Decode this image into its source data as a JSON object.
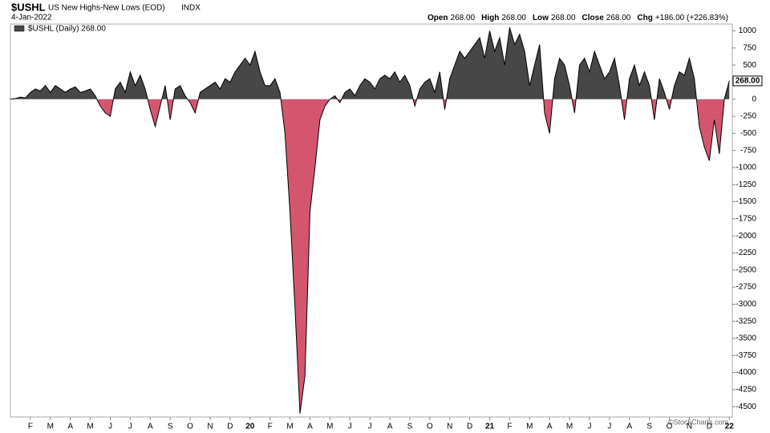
{
  "chart_data": {
    "type": "area",
    "symbol": "$USHL",
    "title": "US New Highs-New Lows (EOD)",
    "exchange": "INDX",
    "date": "4-Jan-2022",
    "quote": [
      {
        "label": "Open",
        "value": "268.00"
      },
      {
        "label": "High",
        "value": "268.00"
      },
      {
        "label": "Low",
        "value": "268.00"
      },
      {
        "label": "Close",
        "value": "268.00"
      },
      {
        "label": "Chg",
        "value": "+186.00 (+226.83%)"
      }
    ],
    "credit": "©StockCharts.com",
    "last_value_label": "268.00",
    "positive_color": "#474747",
    "negative_color": "#d4566e",
    "line_color": "#000000",
    "xlim": [
      0,
      36.15
    ],
    "xticks": [
      {
        "value": 1,
        "label": "F"
      },
      {
        "value": 2,
        "label": "M"
      },
      {
        "value": 3,
        "label": "A"
      },
      {
        "value": 4,
        "label": "M"
      },
      {
        "value": 5,
        "label": "J"
      },
      {
        "value": 6,
        "label": "J"
      },
      {
        "value": 7,
        "label": "A"
      },
      {
        "value": 8,
        "label": "S"
      },
      {
        "value": 9,
        "label": "O"
      },
      {
        "value": 10,
        "label": "N"
      },
      {
        "value": 11,
        "label": "D"
      },
      {
        "value": 12,
        "label": "20"
      },
      {
        "value": 13,
        "label": "F"
      },
      {
        "value": 14,
        "label": "M"
      },
      {
        "value": 15,
        "label": "A"
      },
      {
        "value": 16,
        "label": "M"
      },
      {
        "value": 17,
        "label": "J"
      },
      {
        "value": 18,
        "label": "J"
      },
      {
        "value": 19,
        "label": "A"
      },
      {
        "value": 20,
        "label": "S"
      },
      {
        "value": 21,
        "label": "O"
      },
      {
        "value": 22,
        "label": "N"
      },
      {
        "value": 23,
        "label": "D"
      },
      {
        "value": 24,
        "label": "21"
      },
      {
        "value": 25,
        "label": "F"
      },
      {
        "value": 26,
        "label": "M"
      },
      {
        "value": 27,
        "label": "A"
      },
      {
        "value": 28,
        "label": "M"
      },
      {
        "value": 29,
        "label": "J"
      },
      {
        "value": 30,
        "label": "J"
      },
      {
        "value": 31,
        "label": "A"
      },
      {
        "value": 32,
        "label": "S"
      },
      {
        "value": 33,
        "label": "O"
      },
      {
        "value": 34,
        "label": "N"
      },
      {
        "value": 35,
        "label": "D"
      },
      {
        "value": 36,
        "label": "22"
      }
    ],
    "ylim": [
      -4650,
      1100
    ],
    "yticks": [
      1000,
      750,
      500,
      250,
      0,
      -250,
      -500,
      -750,
      -1000,
      -1250,
      -1500,
      -1750,
      -2000,
      -2250,
      -2500,
      -2750,
      -3000,
      -3250,
      -3500,
      -3750,
      -4000,
      -4250,
      -4500
    ],
    "x": [
      0,
      0.25,
      0.5,
      0.75,
      1,
      1.25,
      1.5,
      1.75,
      2,
      2.25,
      2.5,
      2.75,
      3,
      3.25,
      3.5,
      3.75,
      4,
      4.25,
      4.5,
      4.75,
      5,
      5.25,
      5.5,
      5.75,
      6,
      6.25,
      6.5,
      6.75,
      7,
      7.25,
      7.5,
      7.75,
      8,
      8.25,
      8.5,
      8.75,
      9,
      9.25,
      9.5,
      9.75,
      10,
      10.25,
      10.5,
      10.75,
      11,
      11.25,
      11.5,
      11.75,
      12,
      12.25,
      12.5,
      12.75,
      13,
      13.25,
      13.5,
      13.75,
      14,
      14.25,
      14.5,
      14.75,
      15,
      15.25,
      15.5,
      15.75,
      16,
      16.25,
      16.5,
      16.75,
      17,
      17.25,
      17.5,
      17.75,
      18,
      18.25,
      18.5,
      18.75,
      19,
      19.25,
      19.5,
      19.75,
      20,
      20.25,
      20.5,
      20.75,
      21,
      21.25,
      21.5,
      21.75,
      22,
      22.25,
      22.5,
      22.75,
      23,
      23.25,
      23.5,
      23.75,
      24,
      24.25,
      24.5,
      24.75,
      25,
      25.25,
      25.5,
      25.75,
      26,
      26.25,
      26.5,
      26.75,
      27,
      27.25,
      27.5,
      27.75,
      28,
      28.25,
      28.5,
      28.75,
      29,
      29.25,
      29.5,
      29.75,
      30,
      30.25,
      30.5,
      30.75,
      31,
      31.25,
      31.5,
      31.75,
      32,
      32.25,
      32.5,
      32.75,
      33,
      33.25,
      33.5,
      33.75,
      34,
      34.25,
      34.5,
      34.75,
      35,
      35.25,
      35.5,
      35.75,
      36
    ],
    "series": [
      {
        "name": "$USHL (Daily) 268.00",
        "values": [
          0,
          10,
          30,
          20,
          100,
          150,
          120,
          200,
          100,
          200,
          150,
          100,
          150,
          180,
          100,
          120,
          150,
          50,
          -100,
          -200,
          -250,
          150,
          250,
          100,
          400,
          200,
          350,
          150,
          -150,
          -400,
          -100,
          200,
          -300,
          150,
          200,
          50,
          -50,
          -200,
          100,
          150,
          200,
          250,
          150,
          300,
          250,
          400,
          500,
          600,
          500,
          700,
          400,
          200,
          200,
          300,
          100,
          -500,
          -1650,
          -3050,
          -4600,
          -4050,
          -1650,
          -1000,
          -300,
          -100,
          0,
          50,
          -50,
          100,
          150,
          50,
          200,
          300,
          250,
          150,
          300,
          350,
          300,
          400,
          250,
          350,
          200,
          -100,
          150,
          250,
          300,
          100,
          400,
          -150,
          300,
          500,
          700,
          600,
          700,
          800,
          900,
          600,
          1000,
          700,
          900,
          500,
          1050,
          800,
          950,
          700,
          200,
          500,
          800,
          -200,
          -500,
          300,
          600,
          500,
          200,
          -200,
          500,
          600,
          400,
          700,
          500,
          300,
          400,
          600,
          200,
          -300,
          300,
          500,
          200,
          400,
          200,
          -300,
          300,
          100,
          -150,
          200,
          400,
          350,
          600,
          300,
          -400,
          -700,
          -900,
          -300,
          -800,
          0,
          268
        ]
      }
    ]
  }
}
